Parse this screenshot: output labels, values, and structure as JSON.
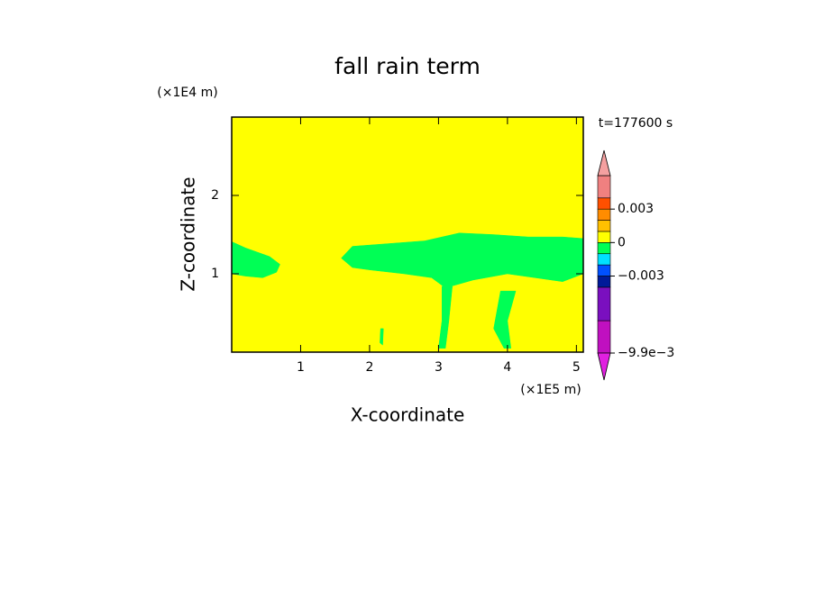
{
  "chart_data": {
    "type": "contour",
    "title": "fall rain term",
    "xlabel": "X-coordinate",
    "ylabel": "Z-coordinate",
    "x_unit_label": "(×1E5 m)",
    "y_unit_label": "(×1E4 m)",
    "time_label": "t=177600 s",
    "xlim": [
      0,
      5.1
    ],
    "ylim": [
      0,
      3
    ],
    "xticks": [
      1,
      2,
      3,
      4,
      5
    ],
    "yticks": [
      1,
      2
    ],
    "background_color": "#ffff00",
    "region_color": "#00ff55",
    "regions": [
      {
        "x": [
          0,
          0.2,
          0.55,
          0.7,
          0.65,
          0.45,
          0.2,
          0
        ],
        "y": [
          1.41,
          1.33,
          1.22,
          1.12,
          1.02,
          0.95,
          0.97,
          1.0
        ]
      },
      {
        "x": [
          1.59,
          1.75,
          2.2,
          2.8,
          3.3,
          3.8,
          4.3,
          4.8,
          5.1,
          5.1,
          4.8,
          4.4,
          4.0,
          3.5,
          3.1,
          2.9,
          2.5,
          2.0,
          1.75
        ],
        "y": [
          1.2,
          1.35,
          1.38,
          1.42,
          1.52,
          1.5,
          1.47,
          1.47,
          1.45,
          1.0,
          0.9,
          0.95,
          1.0,
          0.92,
          0.82,
          0.95,
          1.0,
          1.05,
          1.08
        ]
      },
      {
        "x": [
          3.05,
          3.2,
          3.15,
          3.1,
          3.0,
          3.05
        ],
        "y": [
          0.84,
          0.84,
          0.4,
          0.05,
          0.05,
          0.4
        ]
      },
      {
        "x": [
          3.9,
          4.12,
          4.0,
          4.05,
          3.95,
          3.8
        ],
        "y": [
          0.78,
          0.78,
          0.4,
          0.05,
          0.05,
          0.3
        ]
      },
      {
        "x": [
          2.16,
          2.2,
          2.19,
          2.15
        ],
        "y": [
          0.3,
          0.3,
          0.09,
          0.12
        ]
      }
    ],
    "colorbar": {
      "bounds": [
        -0.0099,
        -0.007,
        -0.004,
        -0.003,
        -0.002,
        -0.001,
        0,
        0.001,
        0.002,
        0.003,
        0.004,
        0.006
      ],
      "colors": [
        "#c010c0",
        "#7a0fbf",
        "#001a99",
        "#0050ff",
        "#00e0ff",
        "#00ff55",
        "#ffff00",
        "#ffc000",
        "#ff8c00",
        "#ff5000",
        "#f08080"
      ],
      "under_color": "#e020e0",
      "over_color": "#f4a0a0",
      "ticks": [
        0.003,
        0,
        {
          "value": -0.003,
          "label": "−0.003"
        },
        {
          "value": -0.0099,
          "label": "−9.9e−3"
        }
      ]
    }
  }
}
